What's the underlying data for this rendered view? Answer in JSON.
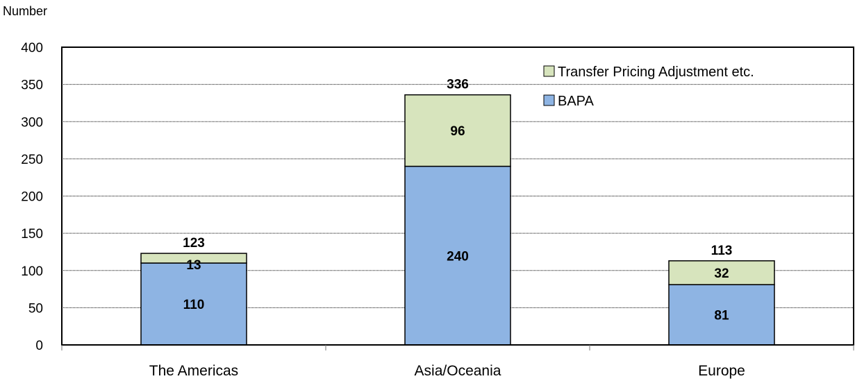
{
  "chart_data": {
    "type": "bar",
    "stacked": true,
    "ylabel": "Number",
    "ylim": [
      0,
      400
    ],
    "yticks": [
      0,
      50,
      100,
      150,
      200,
      250,
      300,
      350,
      400
    ],
    "categories": [
      "The Americas",
      "Asia/Oceania",
      "Europe"
    ],
    "series": [
      {
        "name": "BAPA",
        "values": [
          110,
          240,
          81
        ],
        "color": "#8EB4E3"
      },
      {
        "name": "Transfer Pricing Adjustment etc.",
        "values": [
          13,
          96,
          32
        ],
        "color": "#D7E4BD"
      }
    ],
    "totals": [
      123,
      336,
      113
    ],
    "legend_position": "top-right",
    "grid": true
  }
}
